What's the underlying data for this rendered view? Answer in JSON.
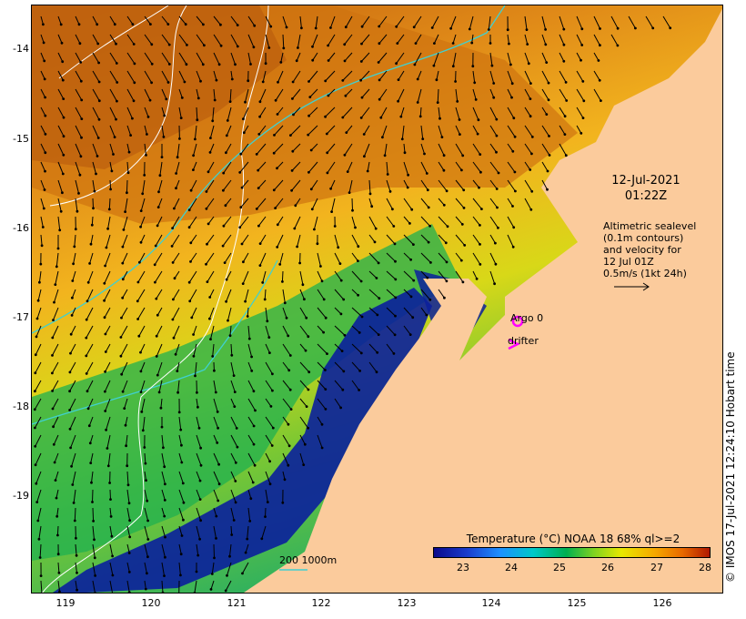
{
  "map": {
    "y_axis_labels": [
      "-14",
      "-15",
      "-16",
      "-17",
      "-18",
      "-19"
    ],
    "x_axis_labels": [
      "119",
      "120",
      "121",
      "122",
      "123",
      "124",
      "125",
      "126"
    ],
    "lon_range": [
      118.6,
      126.7
    ],
    "lat_range": [
      -20.1,
      -13.5
    ]
  },
  "timestamp": {
    "date": "12-Jul-2021",
    "time": "01:22Z"
  },
  "altimetry_note": {
    "line1": "Altimetric sealevel",
    "line2": "(0.1m contours)",
    "line3": "and velocity for",
    "line4": "12 Jul 01Z",
    "line5": "0.5m/s (1kt 24h)"
  },
  "legend": {
    "argo": "Argo 0",
    "drifter": "drifter",
    "depth": "200  1000m"
  },
  "colorbar": {
    "title": "Temperature (°C) NOAA 18 68% ql>=2",
    "ticks": [
      "23",
      "24",
      "25",
      "26",
      "27",
      "28"
    ]
  },
  "credit": "© IMOS 17-Jul-2021 12:24:10 Hobart time",
  "colors": {
    "land": "#fbcb9c",
    "contour_200m": "#40d0d0",
    "contour_1000m": "#ffffff",
    "argo_marker": "#ff00ff",
    "warm": "#c86a10",
    "mid": "#f0b020",
    "cool": "#00b050",
    "cold": "#0a1a9c"
  }
}
